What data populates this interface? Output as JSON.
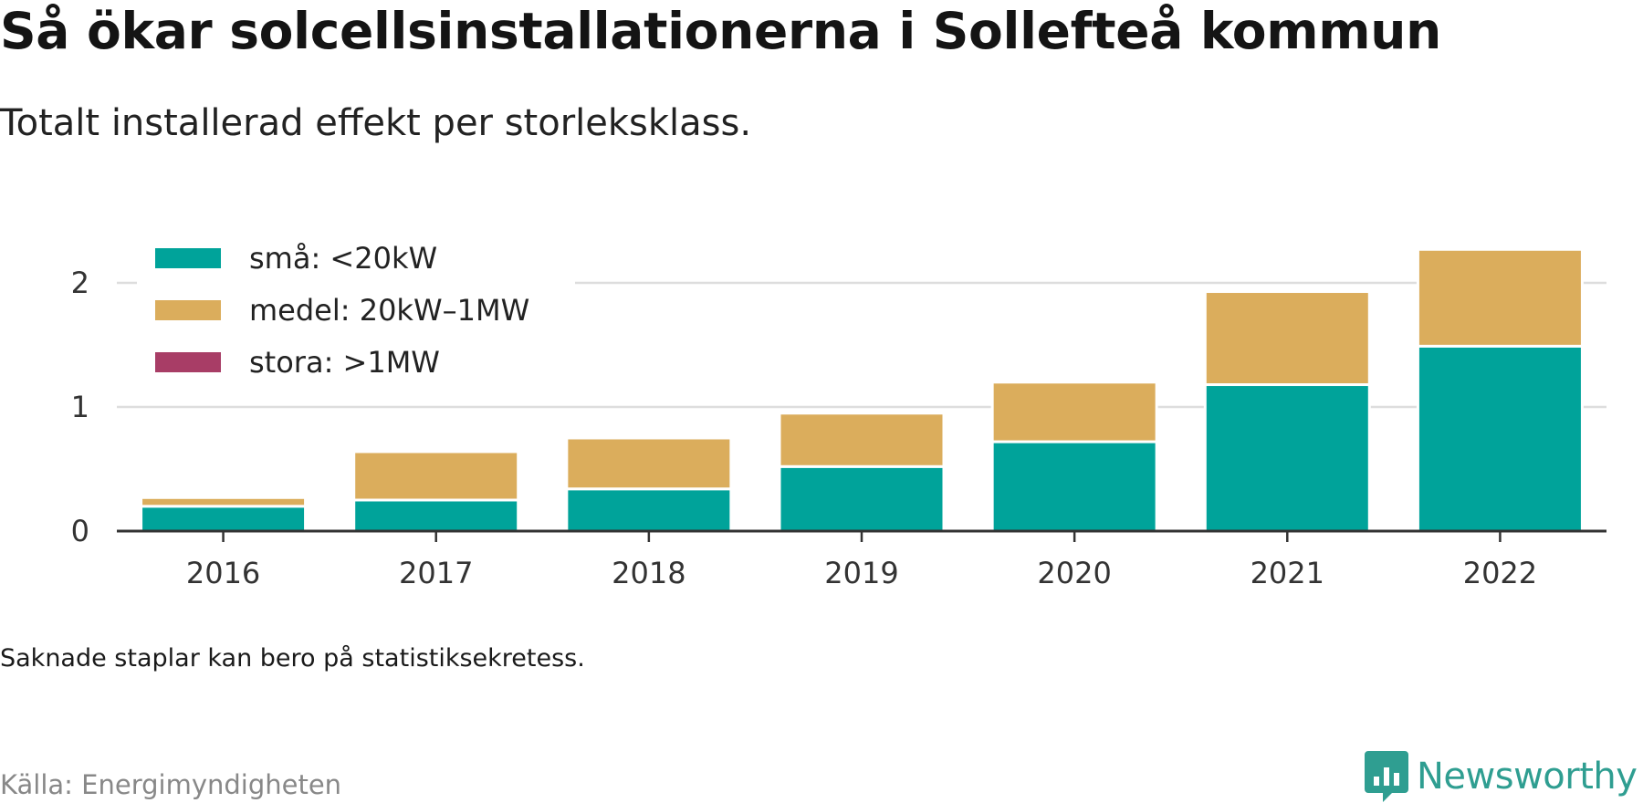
{
  "header": {
    "title": "Så ökar solcellsinstallationerna i Sollefteå kommun",
    "subtitle": "Totalt installerad effekt per storleksklass."
  },
  "footer": {
    "note": "Saknade staplar kan bero på statistiksekretess.",
    "source": "Källa: Energimyndigheten",
    "brand": "Newsworthy",
    "brand_icon": "bar-chart-speech-bubble-icon",
    "brand_color": "#2f9e91"
  },
  "chart_data": {
    "type": "bar",
    "stacked": true,
    "categories": [
      "2016",
      "2017",
      "2018",
      "2019",
      "2020",
      "2021",
      "2022"
    ],
    "series": [
      {
        "name": "små: <20kW",
        "color": "#00a39a",
        "values": [
          0.2,
          0.25,
          0.34,
          0.52,
          0.72,
          1.18,
          1.49
        ]
      },
      {
        "name": "medel: 20kW–1MW",
        "color": "#dbad5c",
        "values": [
          0.07,
          0.39,
          0.41,
          0.43,
          0.48,
          0.75,
          0.78
        ]
      },
      {
        "name": "stora: >1MW",
        "color": "#a83d66",
        "values": [
          0,
          0,
          0,
          0,
          0,
          0,
          0
        ]
      }
    ],
    "ylim": [
      0,
      2.3
    ],
    "yticks": [
      0,
      1,
      2
    ],
    "grid": true,
    "legend": "top-left",
    "xlabel": "",
    "ylabel": ""
  }
}
